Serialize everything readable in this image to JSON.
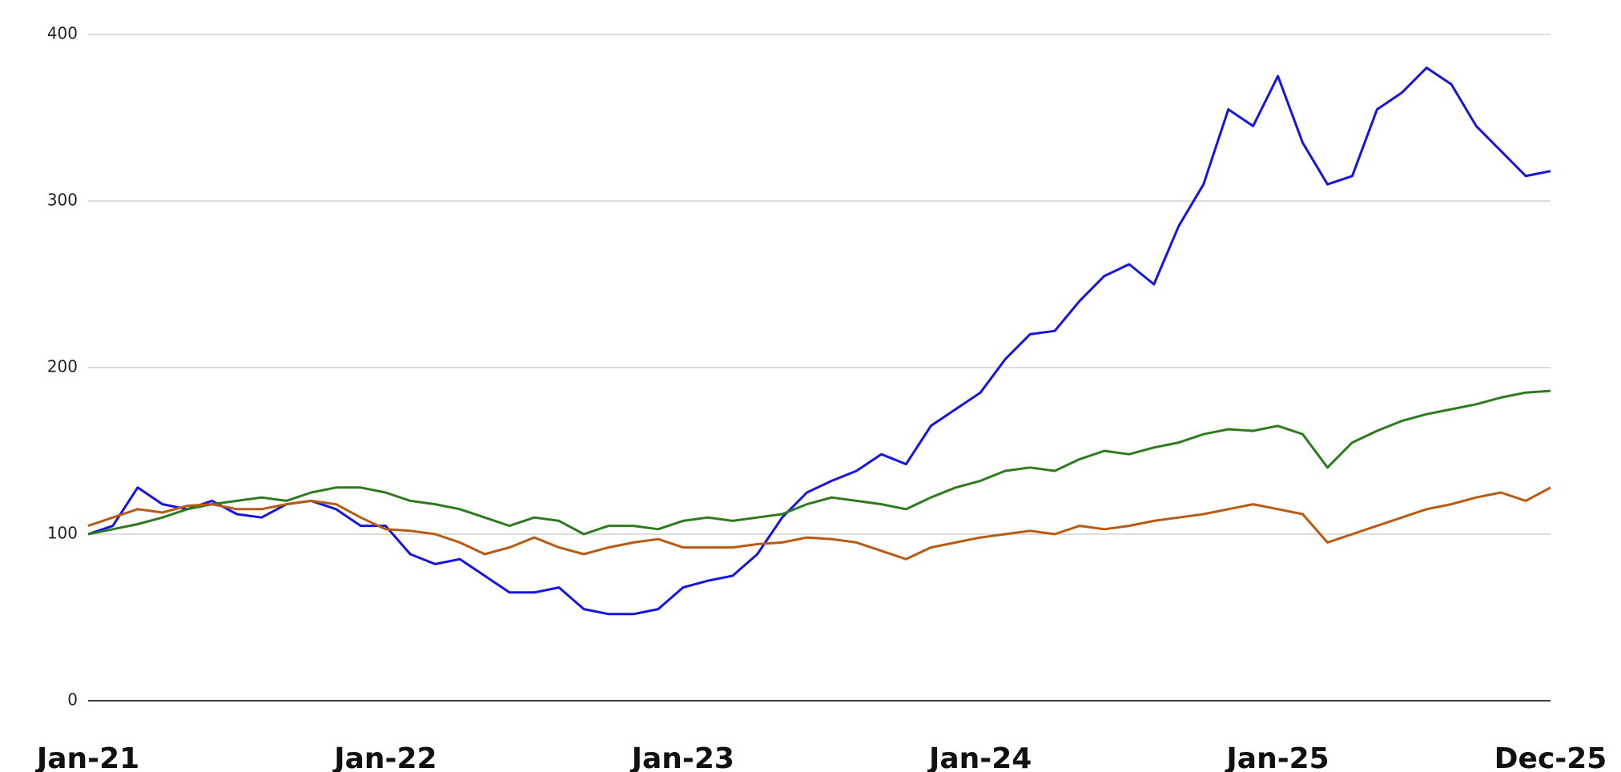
{
  "chart_data": {
    "type": "line",
    "categories": [
      "Jan-21",
      null,
      null,
      null,
      null,
      null,
      null,
      null,
      null,
      null,
      null,
      null,
      "Jan-22",
      null,
      null,
      null,
      null,
      null,
      null,
      null,
      null,
      null,
      null,
      null,
      "Jan-23",
      null,
      null,
      null,
      null,
      null,
      null,
      null,
      null,
      null,
      null,
      null,
      "Jan-24",
      null,
      null,
      null,
      null,
      null,
      null,
      null,
      null,
      null,
      null,
      null,
      "Jan-25",
      null,
      null,
      null,
      null,
      null,
      null,
      null,
      null,
      null,
      null,
      "Dec-25"
    ],
    "series": [
      {
        "color": "#1414e6",
        "values": [
          100,
          105,
          128,
          118,
          115,
          120,
          112,
          110,
          118,
          120,
          115,
          105,
          105,
          88,
          82,
          85,
          75,
          65,
          65,
          68,
          55,
          52,
          52,
          55,
          68,
          72,
          75,
          88,
          110,
          125,
          132,
          138,
          148,
          142,
          165,
          175,
          185,
          205,
          220,
          222,
          240,
          255,
          262,
          250,
          285,
          310,
          355,
          345,
          375,
          335,
          310,
          315,
          355,
          365,
          380,
          370,
          345,
          330,
          315,
          318
        ]
      },
      {
        "color": "#2d7a1f",
        "values": [
          100,
          103,
          106,
          110,
          115,
          118,
          120,
          122,
          120,
          125,
          128,
          128,
          125,
          120,
          118,
          115,
          110,
          105,
          110,
          108,
          100,
          105,
          105,
          103,
          108,
          110,
          108,
          110,
          112,
          118,
          122,
          120,
          118,
          115,
          122,
          128,
          132,
          138,
          140,
          138,
          145,
          150,
          148,
          152,
          155,
          160,
          163,
          162,
          165,
          160,
          140,
          155,
          162,
          168,
          172,
          175,
          178,
          182,
          185,
          186
        ]
      },
      {
        "color": "#b85a12",
        "values": [
          105,
          110,
          115,
          113,
          117,
          118,
          115,
          115,
          118,
          120,
          118,
          110,
          103,
          102,
          100,
          95,
          88,
          92,
          98,
          92,
          88,
          92,
          95,
          97,
          92,
          92,
          92,
          94,
          95,
          98,
          97,
          95,
          90,
          85,
          92,
          95,
          98,
          100,
          102,
          100,
          105,
          103,
          105,
          108,
          110,
          112,
          115,
          118,
          115,
          112,
          95,
          100,
          105,
          110,
          115,
          118,
          122,
          125,
          120,
          128
        ]
      }
    ],
    "ylim": [
      0,
      400
    ],
    "yticks": [
      0,
      100,
      200,
      300,
      400
    ],
    "grid": true
  }
}
